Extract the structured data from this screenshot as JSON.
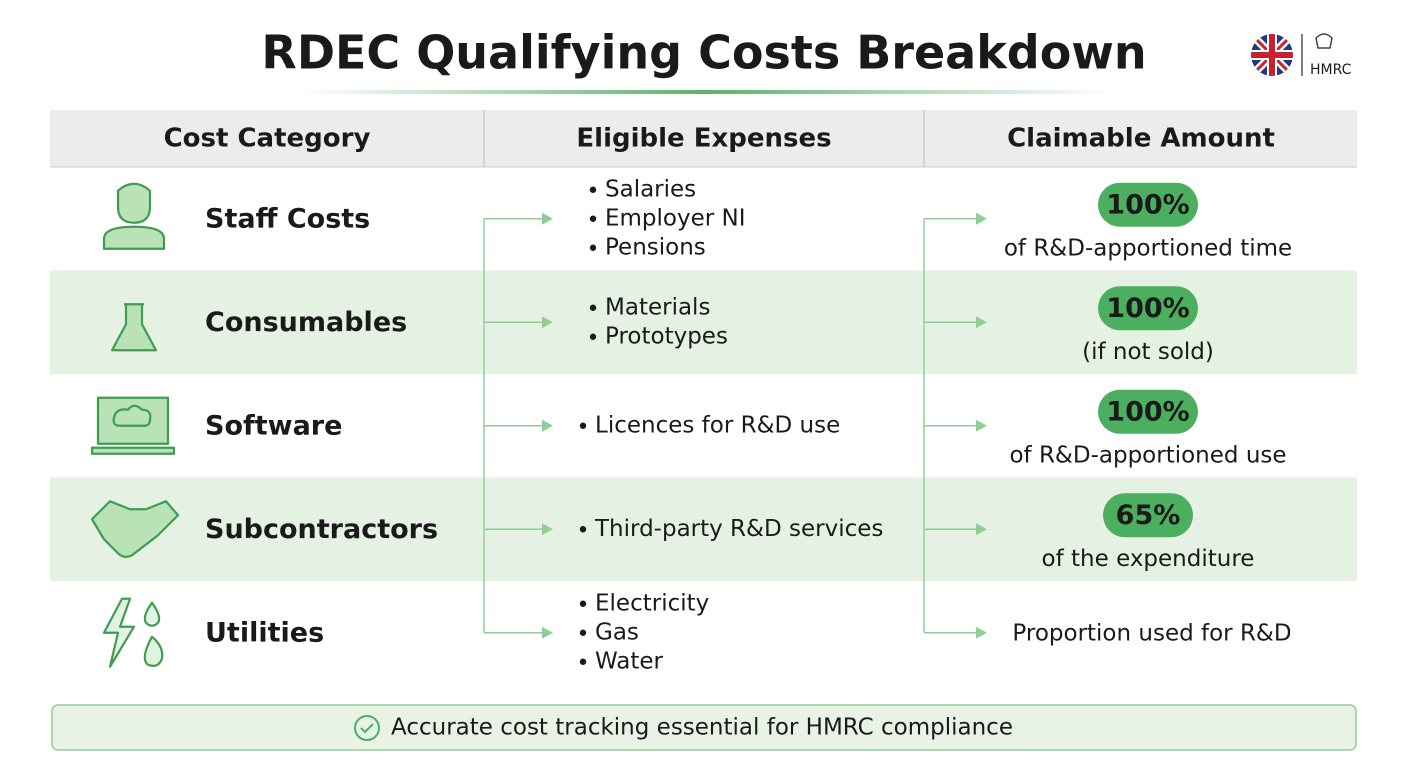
{
  "header": {
    "title": "RDEC Qualifying Costs Breakdown",
    "logo_text": "HMRC"
  },
  "table": {
    "columns": [
      "Cost Category",
      "Eligible Expenses",
      "Claimable Amount"
    ],
    "rows": [
      {
        "category": "Staff Costs",
        "expenses": [
          "Salaries",
          "Employer NI",
          "Pensions"
        ],
        "badge": "100%",
        "note": "of R&D-apportioned time"
      },
      {
        "category": "Consumables",
        "expenses": [
          "Materials",
          "Prototypes"
        ],
        "badge": "100%",
        "note": "(if not sold)"
      },
      {
        "category": "Software",
        "expenses": [
          "Licences for R&D use"
        ],
        "badge": "100%",
        "note": "of R&D-apportioned use"
      },
      {
        "category": "Subcontractors",
        "expenses": [
          "Third-party R&D services"
        ],
        "badge": "65%",
        "note": "of the expenditure"
      },
      {
        "category": "Utilities",
        "expenses": [
          "Electricity",
          "Gas",
          "Water"
        ],
        "note": "Proportion used for R&D"
      }
    ]
  },
  "footer": {
    "note": "Accurate cost tracking essential for HMRC compliance"
  }
}
